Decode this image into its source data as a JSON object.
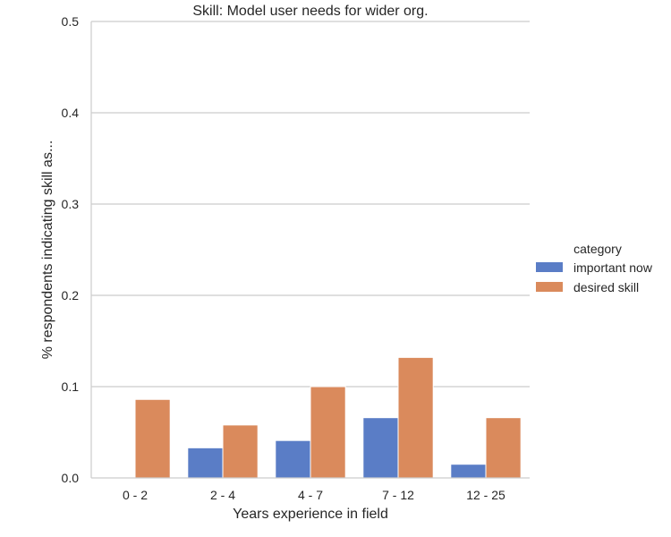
{
  "chart_data": {
    "type": "bar",
    "title": "Skill: Model user needs for wider org.",
    "xlabel": "Years experience in field",
    "ylabel": "% respondents indicating skill as...",
    "categories": [
      "0 - 2",
      "2 - 4",
      "4 - 7",
      "7 - 12",
      "12 - 25"
    ],
    "series": [
      {
        "name": "important now",
        "values": [
          0.0,
          0.033,
          0.041,
          0.066,
          0.015
        ],
        "color": "#5a7dc6"
      },
      {
        "name": "desired skill",
        "values": [
          0.086,
          0.058,
          0.1,
          0.132,
          0.066
        ],
        "color": "#da8a5c"
      }
    ],
    "ylim": [
      0,
      0.5
    ],
    "yticks": [
      "0.0",
      "0.1",
      "0.2",
      "0.3",
      "0.4",
      "0.5"
    ],
    "grid": true,
    "legend": {
      "title": "category",
      "placement": "right"
    }
  }
}
